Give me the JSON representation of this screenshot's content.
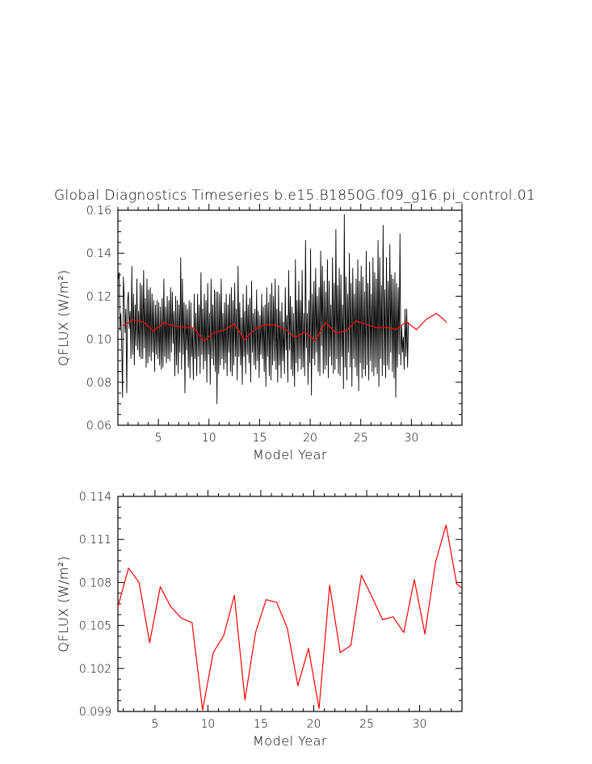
{
  "title": "Global Diagnostics Timeseries b.e15.B1850G.f09_g16.pi_control.01",
  "chart_data": [
    {
      "type": "line",
      "xlabel": "Model Year",
      "ylabel": "QFLUX (W/m²)",
      "xlim": [
        1,
        35
      ],
      "ylim": [
        0.06,
        0.16
      ],
      "x_ticks": [
        5,
        10,
        15,
        20,
        25,
        30
      ],
      "y_ticks": [
        "0.06",
        "0.08",
        "0.10",
        "0.12",
        "0.14",
        "0.16"
      ],
      "grid": false,
      "series": [
        {
          "color": "#000000",
          "monthly_start_year": 1.04,
          "values": [
            0.128,
            0.131,
            0.104,
            0.112,
            0.098,
            0.073,
            0.129,
            0.119,
            0.103,
            0.114,
            0.075,
            0.118,
            0.122,
            0.105,
            0.113,
            0.091,
            0.134,
            0.093,
            0.121,
            0.088,
            0.116,
            0.097,
            0.128,
            0.095,
            0.113,
            0.092,
            0.126,
            0.091,
            0.125,
            0.091,
            0.132,
            0.096,
            0.119,
            0.087,
            0.128,
            0.089,
            0.123,
            0.092,
            0.124,
            0.09,
            0.121,
            0.094,
            0.118,
            0.085,
            0.116,
            0.093,
            0.118,
            0.091,
            0.117,
            0.088,
            0.115,
            0.086,
            0.119,
            0.087,
            0.128,
            0.092,
            0.115,
            0.089,
            0.12,
            0.091,
            0.118,
            0.09,
            0.124,
            0.094,
            0.122,
            0.098,
            0.113,
            0.083,
            0.12,
            0.088,
            0.118,
            0.084,
            0.116,
            0.094,
            0.138,
            0.086,
            0.128,
            0.093,
            0.117,
            0.075,
            0.116,
            0.095,
            0.114,
            0.087,
            0.118,
            0.082,
            0.117,
            0.092,
            0.105,
            0.081,
            0.121,
            0.091,
            0.112,
            0.083,
            0.121,
            0.092,
            0.116,
            0.084,
            0.131,
            0.093,
            0.114,
            0.086,
            0.121,
            0.09,
            0.118,
            0.08,
            0.126,
            0.093,
            0.112,
            0.079,
            0.128,
            0.091,
            0.116,
            0.088,
            0.123,
            0.085,
            0.122,
            0.07,
            0.122,
            0.084,
            0.121,
            0.088,
            0.128,
            0.091,
            0.112,
            0.086,
            0.117,
            0.089,
            0.121,
            0.083,
            0.116,
            0.094,
            0.121,
            0.085,
            0.124,
            0.083,
            0.118,
            0.088,
            0.126,
            0.092,
            0.114,
            0.081,
            0.134,
            0.092,
            0.117,
            0.088,
            0.11,
            0.079,
            0.121,
            0.092,
            0.113,
            0.084,
            0.125,
            0.093,
            0.116,
            0.089,
            0.119,
            0.08,
            0.127,
            0.094,
            0.112,
            0.088,
            0.114,
            0.086,
            0.123,
            0.09,
            0.113,
            0.082,
            0.111,
            0.093,
            0.121,
            0.091,
            0.115,
            0.085,
            0.116,
            0.078,
            0.124,
            0.092,
            0.117,
            0.083,
            0.121,
            0.081,
            0.126,
            0.088,
            0.12,
            0.09,
            0.128,
            0.086,
            0.114,
            0.08,
            0.125,
            0.088,
            0.113,
            0.082,
            0.117,
            0.09,
            0.108,
            0.084,
            0.124,
            0.095,
            0.111,
            0.08,
            0.132,
            0.095,
            0.12,
            0.086,
            0.115,
            0.083,
            0.112,
            0.078,
            0.137,
            0.089,
            0.118,
            0.085,
            0.127,
            0.091,
            0.118,
            0.086,
            0.132,
            0.087,
            0.112,
            0.083,
            0.146,
            0.096,
            0.112,
            0.079,
            0.118,
            0.089,
            0.142,
            0.074,
            0.121,
            0.091,
            0.127,
            0.088,
            0.133,
            0.094,
            0.12,
            0.085,
            0.124,
            0.083,
            0.141,
            0.097,
            0.134,
            0.084,
            0.127,
            0.086,
            0.122,
            0.088,
            0.137,
            0.082,
            0.127,
            0.092,
            0.116,
            0.088,
            0.138,
            0.084,
            0.126,
            0.086,
            0.151,
            0.091,
            0.125,
            0.084,
            0.133,
            0.083,
            0.13,
            0.092,
            0.116,
            0.077,
            0.158,
            0.087,
            0.129,
            0.081,
            0.121,
            0.094,
            0.14,
            0.087,
            0.126,
            0.078,
            0.133,
            0.091,
            0.121,
            0.087,
            0.128,
            0.083,
            0.137,
            0.076,
            0.127,
            0.089,
            0.134,
            0.082,
            0.129,
            0.086,
            0.122,
            0.083,
            0.141,
            0.088,
            0.126,
            0.081,
            0.136,
            0.09,
            0.121,
            0.085,
            0.138,
            0.083,
            0.131,
            0.087,
            0.128,
            0.084,
            0.146,
            0.078,
            0.138,
            0.091,
            0.125,
            0.083,
            0.153,
            0.088,
            0.123,
            0.082,
            0.138,
            0.088,
            0.127,
            0.086,
            0.144,
            0.094,
            0.13,
            0.085,
            0.128,
            0.082,
            0.131,
            0.073,
            0.126,
            0.087,
            0.124,
            0.093,
            0.149,
            0.088,
            0.106,
            0.094,
            0.101,
            0.086,
            0.114,
            0.092,
            0.114,
            0.087,
            0.108
          ]
        },
        {
          "color": "#ff0000",
          "x_start": 1.5,
          "values": [
            0.1063,
            0.109,
            0.108,
            0.1038,
            0.1077,
            0.1063,
            0.1055,
            0.1052,
            0.0991,
            0.1031,
            0.1043,
            0.1071,
            0.0998,
            0.1045,
            0.1068,
            0.1066,
            0.1048,
            0.1008,
            0.1034,
            0.0992,
            0.1078,
            0.1031,
            0.1036,
            0.1085,
            0.107,
            0.1054,
            0.1056,
            0.1045,
            0.1082,
            0.1044,
            0.1094,
            0.112,
            0.1079
          ]
        }
      ]
    },
    {
      "type": "line",
      "xlabel": "Model Year",
      "ylabel": "QFLUX (W/m²)",
      "xlim": [
        1.5,
        34
      ],
      "ylim": [
        0.099,
        0.114
      ],
      "x_ticks": [
        5,
        10,
        15,
        20,
        25,
        30
      ],
      "y_ticks": [
        "0.099",
        "0.102",
        "0.105",
        "0.108",
        "0.111",
        "0.114"
      ],
      "grid": false,
      "series": [
        {
          "color": "#ff0000",
          "x": [
            1.5,
            2.5,
            3.5,
            4.5,
            5.5,
            6.5,
            7.5,
            8.5,
            9.5,
            10.5,
            11.5,
            12.5,
            13.5,
            14.5,
            15.5,
            16.5,
            17.5,
            18.5,
            19.5,
            20.5,
            21.5,
            22.5,
            23.5,
            24.5,
            25.5,
            26.5,
            27.5,
            28.5,
            29.5,
            30.5,
            31.5,
            32.5,
            33.5,
            34.0
          ],
          "values": [
            0.1063,
            0.109,
            0.108,
            0.1038,
            0.1077,
            0.1063,
            0.1055,
            0.1052,
            0.0991,
            0.1031,
            0.1043,
            0.1071,
            0.0998,
            0.1045,
            0.1068,
            0.1066,
            0.1048,
            0.1008,
            0.1034,
            0.0992,
            0.1078,
            0.1031,
            0.1036,
            0.1085,
            0.107,
            0.1054,
            0.1056,
            0.1045,
            0.1082,
            0.1044,
            0.1094,
            0.112,
            0.1079,
            0.1076
          ]
        }
      ]
    }
  ]
}
